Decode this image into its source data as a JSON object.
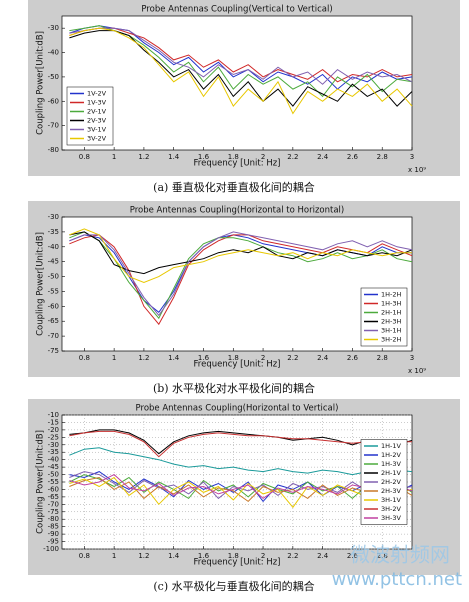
{
  "chart_data": [
    {
      "type": "line",
      "title": "Probe Antennas Coupling(Vertical to Vertical)",
      "xlabel": "Frequency [Unit: Hz]",
      "ylabel": "Coupling Power[Unit:dB]",
      "x_exponent": "x 10⁹",
      "caption": "(a) 垂直极化对垂直极化间的耦合",
      "x": [
        0.7,
        0.8,
        0.9,
        1.0,
        1.1,
        1.2,
        1.3,
        1.4,
        1.5,
        1.6,
        1.7,
        1.8,
        1.9,
        2.0,
        2.1,
        2.2,
        2.3,
        2.4,
        2.5,
        2.6,
        2.7,
        2.8,
        2.9,
        3.0
      ],
      "xlim": [
        0.65,
        3.0
      ],
      "xticks": [
        0.8,
        1,
        1.2,
        1.4,
        1.6,
        1.8,
        2,
        2.2,
        2.4,
        2.6,
        2.8,
        3
      ],
      "ylim": [
        -80,
        -25
      ],
      "yticks": [
        -80,
        -70,
        -60,
        -50,
        -40,
        -30
      ],
      "grid": false,
      "legend": "lower left",
      "series": [
        {
          "name": "1V-2V",
          "color": "#2233cc",
          "values": [
            -32,
            -30,
            -29,
            -30,
            -31,
            -36,
            -40,
            -45,
            -42,
            -48,
            -44,
            -50,
            -47,
            -52,
            -48,
            -50,
            -53,
            -49,
            -55,
            -50,
            -52,
            -48,
            -51,
            -50
          ]
        },
        {
          "name": "1V-3V",
          "color": "#d02828",
          "values": [
            -33,
            -31,
            -30,
            -30,
            -32,
            -34,
            -38,
            -43,
            -41,
            -46,
            -43,
            -48,
            -45,
            -50,
            -47,
            -49,
            -51,
            -47,
            -52,
            -49,
            -50,
            -47,
            -50,
            -49
          ]
        },
        {
          "name": "2V-1V",
          "color": "#4caa3c",
          "values": [
            -31,
            -30,
            -29,
            -31,
            -33,
            -37,
            -42,
            -48,
            -44,
            -52,
            -46,
            -55,
            -49,
            -53,
            -50,
            -55,
            -52,
            -58,
            -50,
            -54,
            -49,
            -56,
            -51,
            -52
          ]
        },
        {
          "name": "2V-3V",
          "color": "#000000",
          "values": [
            -34,
            -32,
            -31,
            -31,
            -33,
            -39,
            -44,
            -50,
            -47,
            -55,
            -49,
            -58,
            -52,
            -60,
            -55,
            -62,
            -54,
            -57,
            -60,
            -53,
            -58,
            -55,
            -62,
            -56
          ]
        },
        {
          "name": "3V-1V",
          "color": "#8060b0",
          "values": [
            -32,
            -31,
            -30,
            -30,
            -31,
            -35,
            -39,
            -44,
            -46,
            -50,
            -45,
            -49,
            -47,
            -51,
            -46,
            -50,
            -48,
            -53,
            -47,
            -51,
            -48,
            -50,
            -49,
            -52
          ]
        },
        {
          "name": "3V-2V",
          "color": "#e8c800",
          "values": [
            -33,
            -31,
            -30,
            -31,
            -34,
            -38,
            -45,
            -52,
            -48,
            -58,
            -50,
            -62,
            -55,
            -60,
            -52,
            -65,
            -56,
            -60,
            -55,
            -58,
            -53,
            -60,
            -55,
            -62
          ]
        }
      ]
    },
    {
      "type": "line",
      "title": "Probe Antennas Coupling(Horizontal to Horizontal)",
      "xlabel": "Frequency [Unit: Hz]",
      "ylabel": "Coupling Power[Unit:dB]",
      "x_exponent": "x 10⁹",
      "caption": "(b) 水平极化对水平极化间的耦合",
      "x": [
        0.7,
        0.8,
        0.9,
        1.0,
        1.1,
        1.2,
        1.3,
        1.4,
        1.5,
        1.6,
        1.7,
        1.8,
        1.9,
        2.0,
        2.1,
        2.2,
        2.3,
        2.4,
        2.5,
        2.6,
        2.7,
        2.8,
        2.9,
        3.0
      ],
      "xlim": [
        0.65,
        3.0
      ],
      "xticks": [
        0.8,
        1,
        1.2,
        1.4,
        1.6,
        1.8,
        2,
        2.2,
        2.4,
        2.6,
        2.8,
        3
      ],
      "ylim": [
        -75,
        -30
      ],
      "yticks": [
        -75,
        -70,
        -65,
        -60,
        -55,
        -50,
        -45,
        -40,
        -35,
        -30
      ],
      "grid": false,
      "legend": "lower right",
      "series": [
        {
          "name": "1H-2H",
          "color": "#2233cc",
          "values": [
            -38,
            -36,
            -37,
            -42,
            -50,
            -58,
            -62,
            -55,
            -45,
            -40,
            -37,
            -36,
            -37,
            -39,
            -40,
            -41,
            -42,
            -43,
            -41,
            -42,
            -43,
            -40,
            -42,
            -42
          ]
        },
        {
          "name": "1H-3H",
          "color": "#d02828",
          "values": [
            -39,
            -37,
            -36,
            -40,
            -48,
            -60,
            -66,
            -57,
            -46,
            -41,
            -38,
            -36,
            -36,
            -38,
            -39,
            -40,
            -41,
            -42,
            -40,
            -41,
            -42,
            -39,
            -41,
            -43
          ]
        },
        {
          "name": "2H-1H",
          "color": "#4caa3c",
          "values": [
            -37,
            -35,
            -38,
            -44,
            -52,
            -58,
            -64,
            -54,
            -44,
            -39,
            -37,
            -37,
            -38,
            -40,
            -42,
            -43,
            -45,
            -44,
            -42,
            -44,
            -43,
            -41,
            -44,
            -45
          ]
        },
        {
          "name": "2H-3H",
          "color": "#000000",
          "values": [
            -36,
            -35,
            -38,
            -46,
            -48,
            -49,
            -47,
            -46,
            -45,
            -44,
            -42,
            -41,
            -42,
            -40,
            -43,
            -44,
            -42,
            -43,
            -41,
            -42,
            -43,
            -42,
            -43,
            -41
          ]
        },
        {
          "name": "3H-1H",
          "color": "#8060b0",
          "values": [
            -38,
            -36,
            -36,
            -41,
            -49,
            -57,
            -63,
            -56,
            -45,
            -40,
            -37,
            -35,
            -36,
            -37,
            -38,
            -39,
            -40,
            -41,
            -39,
            -38,
            -40,
            -38,
            -40,
            -41
          ]
        },
        {
          "name": "3H-2H",
          "color": "#e8c800",
          "values": [
            -36,
            -34,
            -36,
            -44,
            -50,
            -52,
            -50,
            -47,
            -46,
            -45,
            -43,
            -42,
            -41,
            -42,
            -43,
            -42,
            -44,
            -42,
            -43,
            -41,
            -42,
            -43,
            -42,
            -42
          ]
        }
      ]
    },
    {
      "type": "line",
      "title": "Probe Antennas Coupling(Horizontal to Vertical)",
      "xlabel": "Frequency [Unit: Hz]",
      "ylabel": "Coupling Power[Unit:dB]",
      "caption": "(c)  水平极化与垂直极化间的耦合",
      "x": [
        0.7,
        0.8,
        0.9,
        1.0,
        1.1,
        1.2,
        1.3,
        1.4,
        1.5,
        1.6,
        1.7,
        1.8,
        1.9,
        2.0,
        2.1,
        2.2,
        2.3,
        2.4,
        2.5,
        2.6,
        2.7,
        2.8,
        2.9,
        3.0
      ],
      "xlim": [
        0.65,
        3.0
      ],
      "xticks": [
        0.8,
        1,
        1.2,
        1.4,
        1.6,
        1.8,
        2,
        2.2,
        2.4,
        2.6,
        2.8
      ],
      "ylim": [
        -100,
        -10
      ],
      "yticks": [
        -100,
        -95,
        -90,
        -85,
        -80,
        -75,
        -70,
        -65,
        -60,
        -55,
        -50,
        -45,
        -40,
        -35,
        -30,
        -25,
        -20,
        -15,
        -10
      ],
      "grid": true,
      "legend": "center right",
      "series": [
        {
          "name": "1H-1V",
          "color": "#1a9a9a",
          "values": [
            -37,
            -33,
            -32,
            -35,
            -36,
            -38,
            -40,
            -43,
            -45,
            -44,
            -46,
            -45,
            -47,
            -48,
            -46,
            -48,
            -49,
            -47,
            -48,
            -50,
            -48,
            -49,
            -47,
            -48
          ]
        },
        {
          "name": "1H-2V",
          "color": "#2233cc",
          "values": [
            -50,
            -52,
            -48,
            -55,
            -60,
            -53,
            -58,
            -65,
            -54,
            -60,
            -56,
            -62,
            -55,
            -68,
            -57,
            -60,
            -55,
            -64,
            -58,
            -61,
            -56,
            -59,
            -62,
            -57
          ]
        },
        {
          "name": "1H-3V",
          "color": "#4caa3c",
          "values": [
            -55,
            -50,
            -53,
            -58,
            -52,
            -62,
            -55,
            -60,
            -66,
            -54,
            -61,
            -57,
            -65,
            -56,
            -60,
            -63,
            -55,
            -61,
            -58,
            -66,
            -57,
            -60,
            -55,
            -62
          ]
        },
        {
          "name": "2H-1V",
          "color": "#000000",
          "values": [
            -23,
            -22,
            -20,
            -20,
            -22,
            -27,
            -36,
            -28,
            -24,
            -22,
            -21,
            -22,
            -23,
            -24,
            -25,
            -27,
            -26,
            -25,
            -27,
            -30,
            -27,
            -28,
            -30,
            -27
          ]
        },
        {
          "name": "2H-2V",
          "color": "#8060b0",
          "values": [
            -52,
            -48,
            -50,
            -56,
            -62,
            -54,
            -59,
            -57,
            -63,
            -55,
            -66,
            -58,
            -61,
            -57,
            -64,
            -56,
            -60,
            -58,
            -62,
            -55,
            -61,
            -57,
            -60,
            -58
          ]
        },
        {
          "name": "2H-3V",
          "color": "#c87828",
          "values": [
            -58,
            -54,
            -52,
            -60,
            -55,
            -66,
            -58,
            -63,
            -57,
            -65,
            -59,
            -61,
            -68,
            -58,
            -62,
            -60,
            -66,
            -57,
            -64,
            -59,
            -62,
            -60,
            -58,
            -64
          ]
        },
        {
          "name": "3H-1V",
          "color": "#e8c800",
          "values": [
            -56,
            -53,
            -58,
            -52,
            -64,
            -57,
            -70,
            -60,
            -55,
            -62,
            -58,
            -67,
            -56,
            -63,
            -60,
            -72,
            -58,
            -64,
            -57,
            -61,
            -65,
            -58,
            -63,
            -60
          ]
        },
        {
          "name": "3H-2V",
          "color": "#c83030",
          "values": [
            -24,
            -22,
            -21,
            -21,
            -23,
            -28,
            -38,
            -29,
            -25,
            -23,
            -22,
            -23,
            -24,
            -24,
            -25,
            -26,
            -26,
            -27,
            -28,
            -29,
            -28,
            -29,
            -28,
            -28
          ]
        },
        {
          "name": "3H-3V",
          "color": "#c040a0",
          "values": [
            -54,
            -57,
            -55,
            -50,
            -59,
            -61,
            -56,
            -64,
            -59,
            -58,
            -63,
            -60,
            -57,
            -66,
            -59,
            -62,
            -58,
            -60,
            -63,
            -57,
            -59,
            -64,
            -58,
            -61
          ]
        }
      ]
    }
  ],
  "watermark": {
    "brand": "微波射频网",
    "url": "www.pttcn.net"
  }
}
